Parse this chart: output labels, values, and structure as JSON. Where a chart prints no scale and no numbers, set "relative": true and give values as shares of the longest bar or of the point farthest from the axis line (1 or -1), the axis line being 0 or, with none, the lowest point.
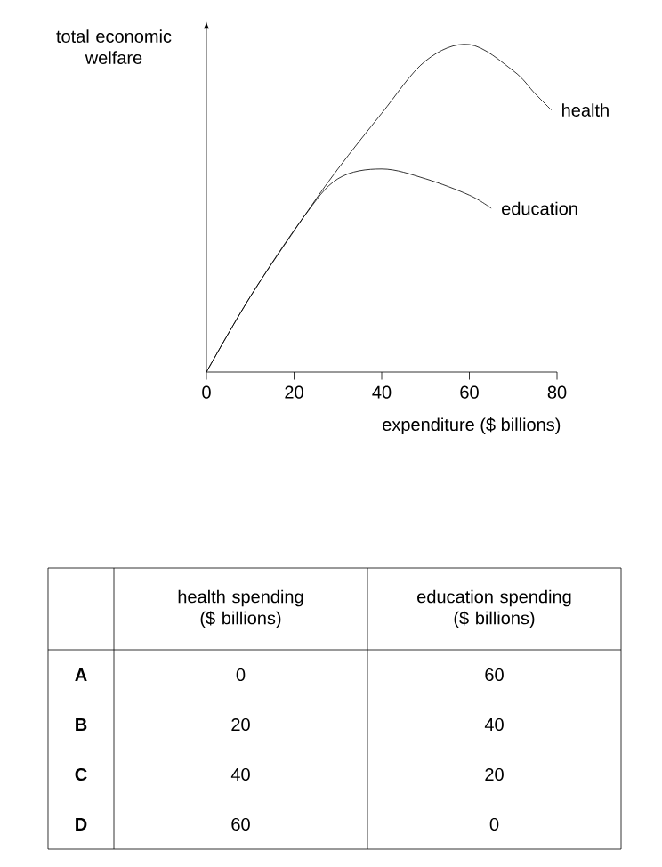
{
  "chart_data": [
    {
      "type": "line",
      "ylabel": "total economic welfare",
      "xlabel": "expenditure ($ billions)",
      "relative": true,
      "xlim": [
        0,
        80
      ],
      "xticks": [
        0,
        20,
        40,
        60,
        80
      ],
      "series": [
        {
          "name": "health",
          "color": "#000000",
          "x": [
            0,
            10,
            22,
            30,
            40,
            50,
            60,
            70,
            75,
            78.7
          ],
          "values": [
            0,
            0.23,
            0.47,
            0.62,
            0.79,
            0.95,
            1.0,
            0.92,
            0.85,
            0.8
          ]
        },
        {
          "name": "education",
          "color": "#000000",
          "x": [
            0,
            10,
            22,
            30,
            40,
            50,
            60,
            65
          ],
          "values": [
            0,
            0.23,
            0.47,
            0.59,
            0.62,
            0.59,
            0.54,
            0.5
          ]
        }
      ]
    },
    {
      "type": "other",
      "categories": [
        "A",
        "B",
        "C",
        "D"
      ],
      "data_labels": true,
      "series": [
        {
          "name": "health spending ($ billions)",
          "values": [
            0,
            20,
            40,
            60
          ]
        },
        {
          "name": "education spending ($ billions)",
          "values": [
            60,
            40,
            20,
            0
          ]
        }
      ]
    }
  ]
}
